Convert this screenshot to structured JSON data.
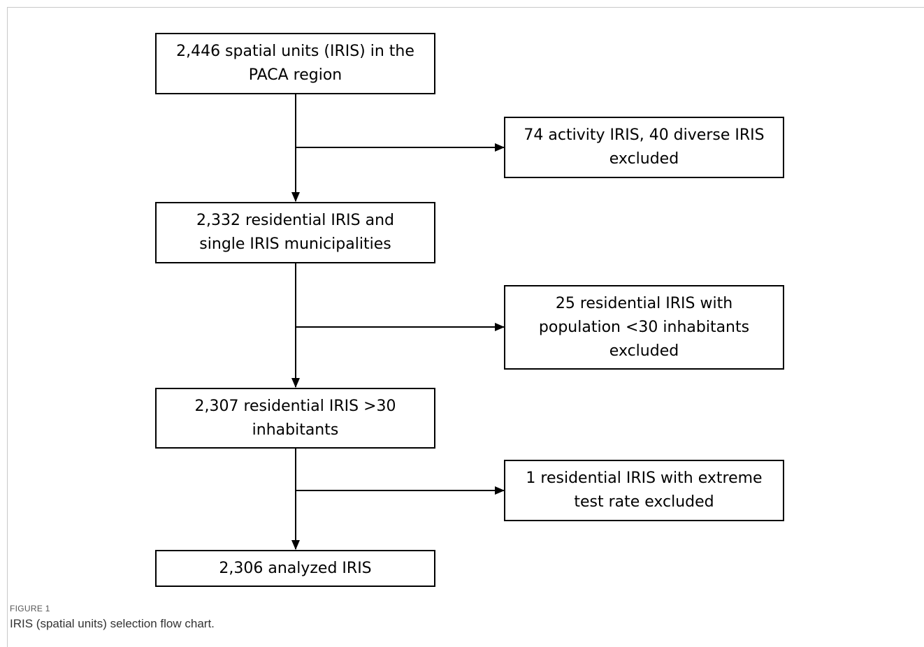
{
  "flowchart": {
    "main_steps": [
      "2,446 spatial units (IRIS) in the\nPACA region",
      "2,332 residential IRIS and\nsingle IRIS municipalities",
      "2,307 residential IRIS  >30\ninhabitants",
      "2,306 analyzed IRIS"
    ],
    "exclusions": [
      "74 activity IRIS, 40 diverse IRIS\nexcluded",
      "25 residential IRIS with\npopulation <30 inhabitants\nexcluded",
      "1 residential IRIS with extreme\ntest rate excluded"
    ]
  },
  "figure": {
    "label": "FIGURE 1",
    "caption": "IRIS (spatial units) selection flow chart."
  }
}
